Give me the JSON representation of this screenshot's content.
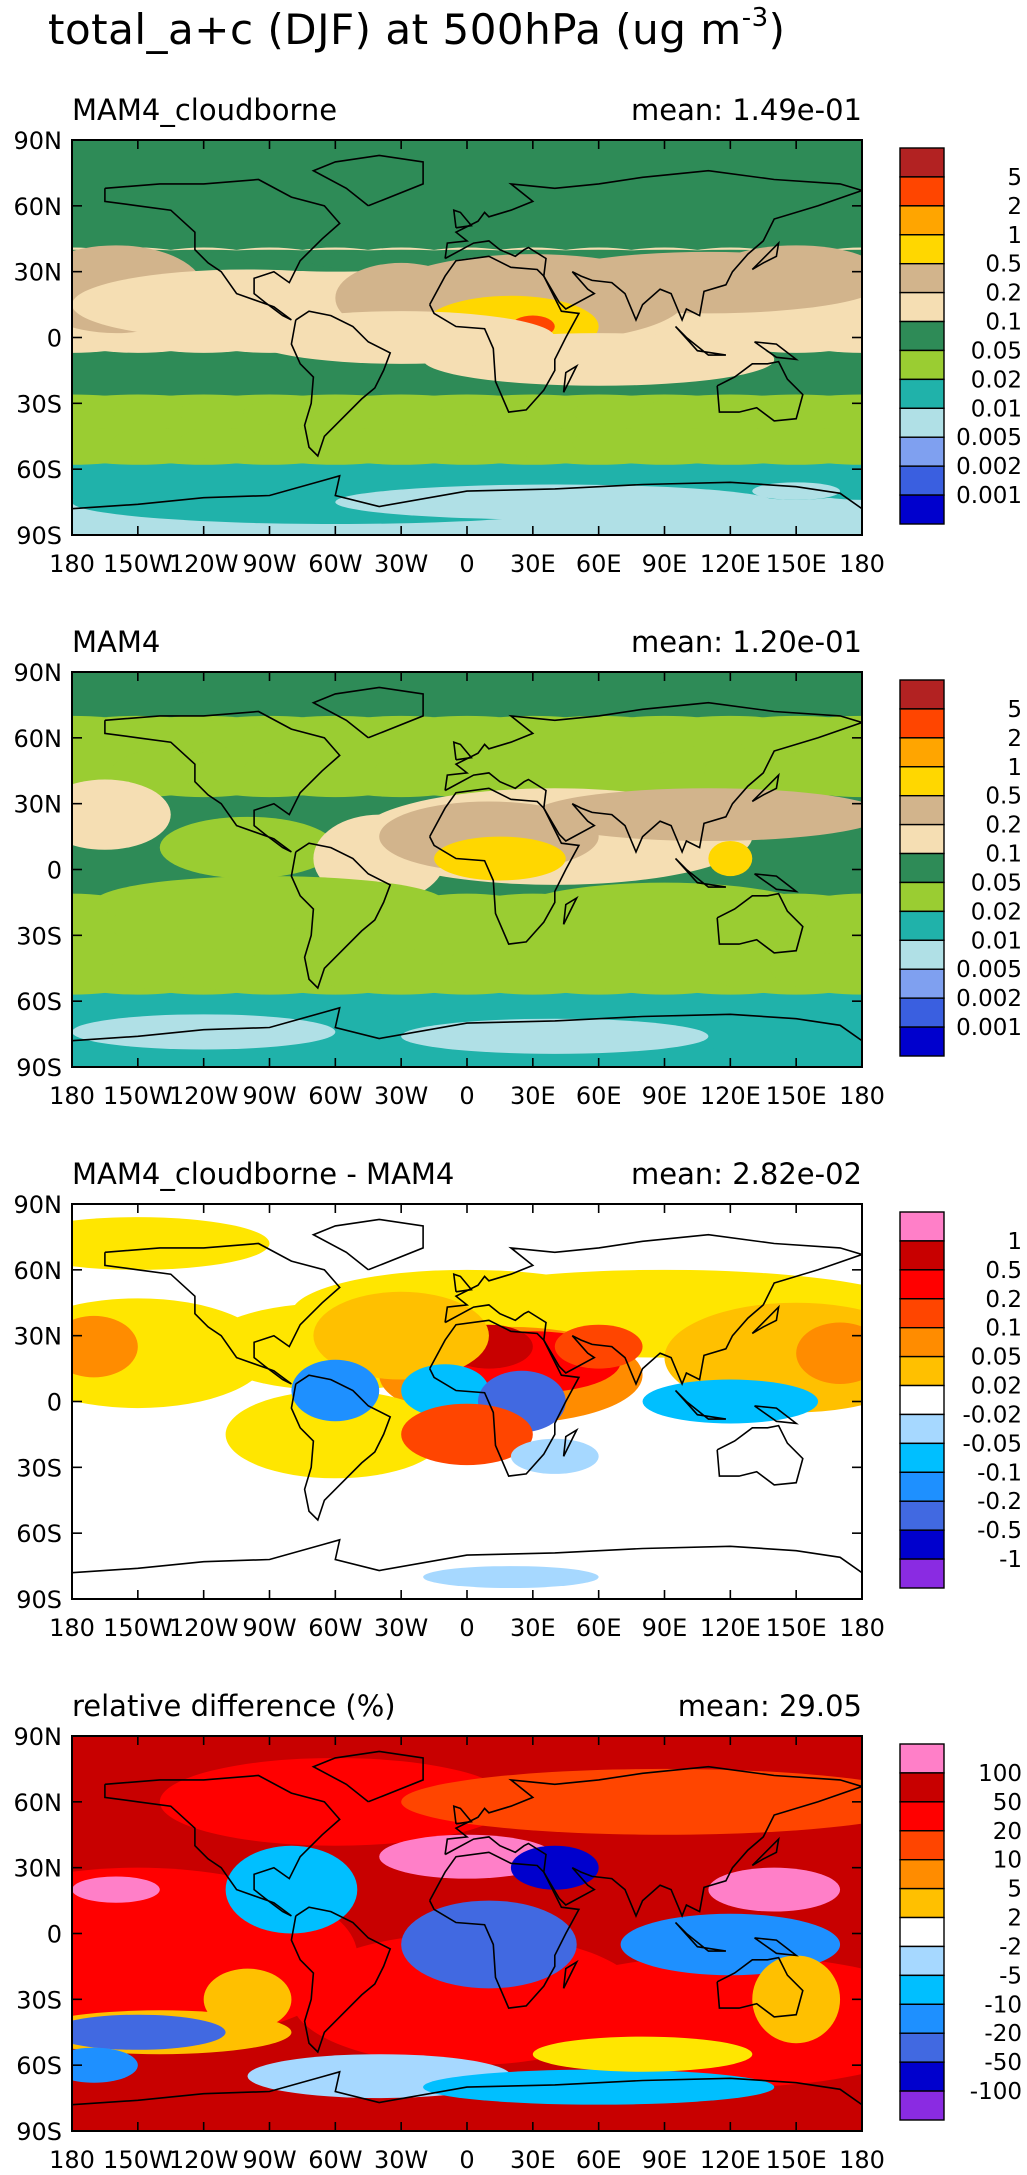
{
  "figure": {
    "title": "total_a+c (DJF) at 500hPa (ug m",
    "title_exponent": "-3",
    "title_close": ")"
  },
  "colors": {
    "level_scale": [
      "#0000cd",
      "#3a5fe0",
      "#7fa0f0",
      "#b0e0e6",
      "#20b2aa",
      "#9acd32",
      "#2e8b57",
      "#f5deb3",
      "#d2b48c",
      "#ffd700",
      "#ffa500",
      "#ff4500",
      "#b22222"
    ],
    "diff_scale": [
      "#8a2be2",
      "#0000cd",
      "#4169e1",
      "#1e90ff",
      "#00bfff",
      "#a6d8ff",
      "#ffffff",
      "#ffe600",
      "#ffc000",
      "#ff8c00",
      "#ff4500",
      "#ff0000",
      "#c80000",
      "#ff7fc8"
    ]
  },
  "chart_data": [
    {
      "type": "heatmap",
      "map": "global lat-lon contour",
      "title": "MAM4_cloudborne",
      "mean_label": "mean: 1.49e-01",
      "mean": 0.149,
      "x_ticks": [
        "180",
        "150W",
        "120W",
        "90W",
        "60W",
        "30W",
        "0",
        "30E",
        "60E",
        "90E",
        "120E",
        "150E",
        "180"
      ],
      "y_ticks": [
        "90N",
        "60N",
        "30N",
        "0",
        "30S",
        "60S",
        "90S"
      ],
      "legend": [
        "5",
        "2",
        "1",
        "0.5",
        "0.2",
        "0.1",
        "0.05",
        "0.02",
        "0.01",
        "0.005",
        "0.002",
        "0.001"
      ],
      "units": "ug m-3"
    },
    {
      "type": "heatmap",
      "map": "global lat-lon contour",
      "title": "MAM4",
      "mean_label": "mean: 1.20e-01",
      "mean": 0.12,
      "x_ticks": [
        "180",
        "150W",
        "120W",
        "90W",
        "60W",
        "30W",
        "0",
        "30E",
        "60E",
        "90E",
        "120E",
        "150E",
        "180"
      ],
      "y_ticks": [
        "90N",
        "60N",
        "30N",
        "0",
        "30S",
        "60S",
        "90S"
      ],
      "legend": [
        "5",
        "2",
        "1",
        "0.5",
        "0.2",
        "0.1",
        "0.05",
        "0.02",
        "0.01",
        "0.005",
        "0.002",
        "0.001"
      ],
      "units": "ug m-3"
    },
    {
      "type": "heatmap",
      "map": "global lat-lon contour",
      "title": "MAM4_cloudborne - MAM4",
      "mean_label": "mean: 2.82e-02",
      "mean": 0.0282,
      "x_ticks": [
        "180",
        "150W",
        "120W",
        "90W",
        "60W",
        "30W",
        "0",
        "30E",
        "60E",
        "90E",
        "120E",
        "150E",
        "180"
      ],
      "y_ticks": [
        "90N",
        "60N",
        "30N",
        "0",
        "30S",
        "60S",
        "90S"
      ],
      "legend": [
        "1",
        "0.5",
        "0.2",
        "0.1",
        "0.05",
        "0.02",
        "-0.02",
        "-0.05",
        "-0.1",
        "-0.2",
        "-0.5",
        "-1"
      ],
      "units": "ug m-3"
    },
    {
      "type": "heatmap",
      "map": "global lat-lon contour",
      "title": "relative difference (%)",
      "mean_label": "mean: 29.05",
      "mean": 29.05,
      "x_ticks": [
        "180",
        "150W",
        "120W",
        "90W",
        "60W",
        "30W",
        "0",
        "30E",
        "60E",
        "90E",
        "120E",
        "150E",
        "180"
      ],
      "y_ticks": [
        "90N",
        "60N",
        "30N",
        "0",
        "30S",
        "60S",
        "90S"
      ],
      "legend": [
        "100",
        "50",
        "20",
        "10",
        "5",
        "2",
        "-2",
        "-5",
        "-10",
        "-20",
        "-50",
        "-100"
      ],
      "units": "%"
    }
  ]
}
